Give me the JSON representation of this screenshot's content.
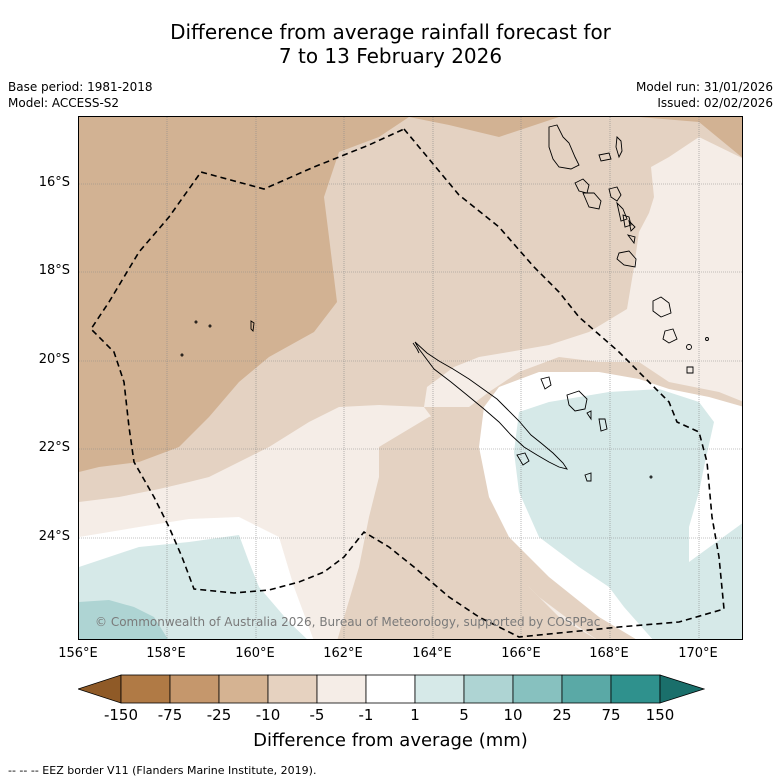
{
  "title": {
    "line1": "Difference from average rainfall forecast for",
    "line2": "7 to 13 February 2026"
  },
  "meta": {
    "base_period": "Base period: 1981-2018",
    "model": "Model: ACCESS-S2",
    "model_run": "Model run: 31/01/2026",
    "issued": "Issued: 02/02/2026"
  },
  "map": {
    "copyright": "© Commonwealth of Australia 2026, Bureau of Meteorology, supported by COSPPac",
    "lat_labels": [
      "16°S",
      "18°S",
      "20°S",
      "22°S",
      "24°S"
    ],
    "lon_labels": [
      "156°E",
      "158°E",
      "160°E",
      "162°E",
      "164°E",
      "166°E",
      "168°E",
      "170°E"
    ]
  },
  "colorbar": {
    "title": "Difference from average (mm)",
    "tick_labels": [
      "-150",
      "-75",
      "-25",
      "-10",
      "-5",
      "-1",
      "1",
      "5",
      "10",
      "25",
      "75",
      "150"
    ],
    "colors": [
      "#8f5a27",
      "#b07a45",
      "#c5976c",
      "#d5b392",
      "#e6d2c0",
      "#f5ede7",
      "#ffffff",
      "#d6e9e8",
      "#aed4d3",
      "#87c1bf",
      "#5aa9a6",
      "#2f918d",
      "#1a6f6b"
    ]
  },
  "legend": {
    "eez_note": "--  --  -- EEZ border V11 (Flanders Marine Institute, 2019)."
  },
  "colors": {
    "dark_brown": "#d2b293",
    "light_brown": "#e4d2c2",
    "very_light": "#f5ede7",
    "light_teal": "#d6e9e8",
    "mid_teal": "#aed4d3"
  }
}
